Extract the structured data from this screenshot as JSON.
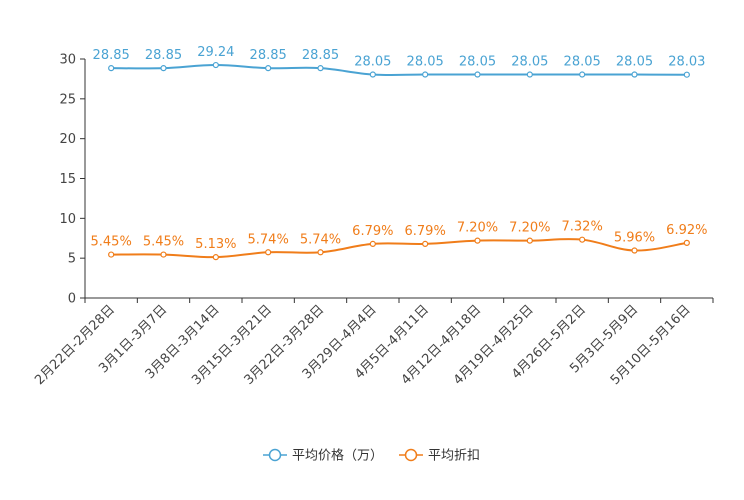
{
  "chart_data": {
    "type": "line",
    "title": "",
    "xlabel": "",
    "ylabel": "",
    "ylim": [
      0,
      30
    ],
    "yticks": [
      0,
      5,
      10,
      15,
      20,
      25,
      30
    ],
    "categories": [
      "2月22日-2月28日",
      "3月1日-3月7日",
      "3月8日-3月14日",
      "3月15日-3月21日",
      "3月22日-3月28日",
      "3月29日-4月4日",
      "4月5日-4月11日",
      "4月12日-4月18日",
      "4月19日-4月25日",
      "4月26日-5月2日",
      "5月3日-5月9日",
      "5月10日-5月16日"
    ],
    "series": [
      {
        "name": "平均价格（万）",
        "color": "#4aa3d3",
        "values": [
          28.85,
          28.85,
          29.24,
          28.85,
          28.85,
          28.05,
          28.05,
          28.05,
          28.05,
          28.05,
          28.05,
          28.03
        ],
        "labels": [
          "28.85",
          "28.85",
          "29.24",
          "28.85",
          "28.85",
          "28.05",
          "28.05",
          "28.05",
          "28.05",
          "28.05",
          "28.05",
          "28.03"
        ]
      },
      {
        "name": "平均折扣",
        "color": "#f07d1a",
        "values": [
          5.45,
          5.45,
          5.13,
          5.74,
          5.74,
          6.79,
          6.79,
          7.2,
          7.2,
          7.32,
          5.96,
          6.92
        ],
        "labels": [
          "5.45%",
          "5.45%",
          "5.13%",
          "5.74%",
          "5.74%",
          "6.79%",
          "6.79%",
          "7.20%",
          "7.20%",
          "7.32%",
          "5.96%",
          "6.92%"
        ]
      }
    ],
    "legend_position": "bottom-center",
    "grid": false
  }
}
